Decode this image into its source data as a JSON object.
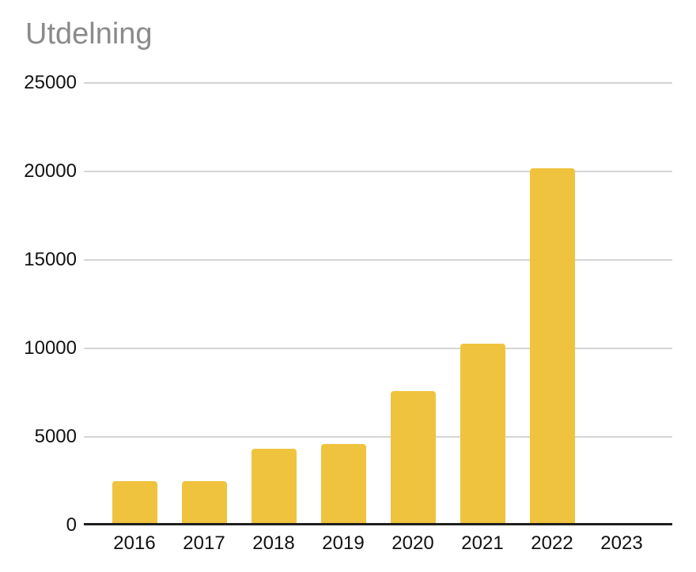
{
  "chart_data": {
    "type": "bar",
    "title": "Utdelning",
    "categories": [
      "2016",
      "2017",
      "2018",
      "2019",
      "2020",
      "2021",
      "2022",
      "2023"
    ],
    "values": [
      2500,
      2500,
      4330,
      4600,
      7600,
      10250,
      20200,
      0
    ],
    "xlabel": "",
    "ylabel": "",
    "ylim": [
      0,
      25000
    ],
    "yticks": [
      0,
      5000,
      10000,
      15000,
      20000,
      25000
    ],
    "grid": true,
    "legend_position": "none",
    "bar_color": "#F0C33E",
    "gridline_color": "#D5D5D5",
    "axis_line_color": "#1F1F1F",
    "title_color": "#8B8B8B",
    "tick_label_color": "#111111",
    "background_color": "#FFFFFF"
  }
}
